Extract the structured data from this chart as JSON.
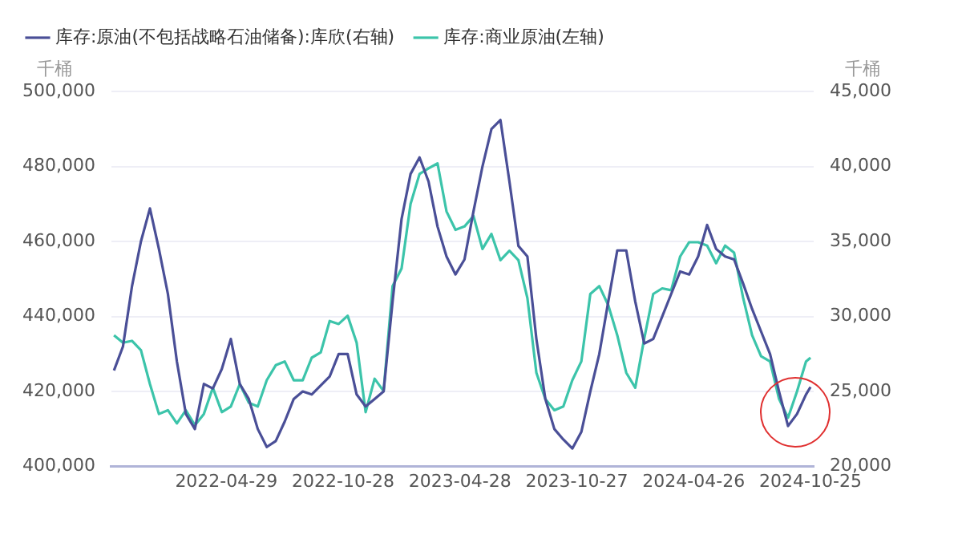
{
  "chart_data": {
    "type": "line",
    "ylabel": "千桶",
    "y2label": "千桶",
    "x": [
      "2021-11-05",
      "2021-11-19",
      "2021-12-03",
      "2021-12-17",
      "2021-12-31",
      "2022-01-14",
      "2022-01-28",
      "2022-02-11",
      "2022-02-25",
      "2022-03-11",
      "2022-03-25",
      "2022-04-08",
      "2022-04-22",
      "2022-05-06",
      "2022-05-20",
      "2022-06-03",
      "2022-06-17",
      "2022-07-01",
      "2022-07-15",
      "2022-07-29",
      "2022-08-12",
      "2022-08-26",
      "2022-09-09",
      "2022-09-23",
      "2022-10-07",
      "2022-10-21",
      "2022-11-04",
      "2022-11-18",
      "2022-12-02",
      "2022-12-16",
      "2022-12-30",
      "2023-01-13",
      "2023-01-27",
      "2023-02-10",
      "2023-02-24",
      "2023-03-10",
      "2023-03-24",
      "2023-04-07",
      "2023-04-21",
      "2023-05-05",
      "2023-05-19",
      "2023-06-02",
      "2023-06-16",
      "2023-06-30",
      "2023-07-14",
      "2023-07-28",
      "2023-08-11",
      "2023-08-25",
      "2023-09-08",
      "2023-09-22",
      "2023-10-06",
      "2023-10-20",
      "2023-11-03",
      "2023-11-17",
      "2023-12-01",
      "2023-12-15",
      "2023-12-29",
      "2024-01-12",
      "2024-01-26",
      "2024-02-09",
      "2024-02-23",
      "2024-03-08",
      "2024-03-22",
      "2024-04-05",
      "2024-04-19",
      "2024-05-03",
      "2024-05-17",
      "2024-05-31",
      "2024-06-14",
      "2024-06-28",
      "2024-07-12",
      "2024-07-26",
      "2024-08-09",
      "2024-08-23",
      "2024-09-06",
      "2024-09-20",
      "2024-10-04",
      "2024-10-18",
      "2024-10-25"
    ],
    "series": [
      {
        "name": "库存:原油(不包括战略石油储备):库欣(右轴)",
        "color": "#4a4f97",
        "axis": "y2",
        "values": [
          26400,
          28000,
          32000,
          35000,
          37200,
          34500,
          31500,
          27000,
          23500,
          22500,
          25500,
          25200,
          26500,
          28500,
          25500,
          24500,
          22500,
          21300,
          21700,
          23000,
          24500,
          25000,
          24800,
          25400,
          26000,
          27500,
          27500,
          24800,
          24000,
          24500,
          25000,
          31000,
          36500,
          39500,
          40600,
          39000,
          36000,
          34000,
          32800,
          33800,
          37000,
          40000,
          42500,
          43100,
          39000,
          34700,
          34000,
          28500,
          24500,
          22500,
          21800,
          21200,
          22300,
          25000,
          27500,
          31000,
          34400,
          34400,
          31000,
          28200,
          28500,
          30000,
          31500,
          33000,
          32800,
          34000,
          36100,
          34500,
          34000,
          33800,
          32200,
          30500,
          29000,
          27500,
          25000,
          22700,
          23500,
          24800,
          25300
        ]
      },
      {
        "name": "库存:商业原油(左轴)",
        "color": "#3cc4aa",
        "values": [
          435000,
          433000,
          433500,
          431000,
          422000,
          414000,
          415000,
          411500,
          415000,
          411000,
          414000,
          421000,
          414500,
          416000,
          422000,
          417000,
          416000,
          423000,
          427000,
          428000,
          423000,
          423000,
          429000,
          430400,
          438800,
          438000,
          440200,
          433000,
          414500,
          423400,
          420100,
          448100,
          452800,
          470000,
          478000,
          479500,
          480800,
          468000,
          463100,
          464000,
          466800,
          458000,
          462000,
          455000,
          457500,
          455000,
          444900,
          425000,
          418000,
          415000,
          416000,
          423000,
          428000,
          446000,
          448100,
          443000,
          435000,
          425000,
          421000,
          434100,
          446000,
          447500,
          447000,
          456000,
          459800,
          459800,
          458900,
          454200,
          458900,
          457000,
          445000,
          435000,
          429400,
          428000,
          418000,
          413000,
          420000,
          428000,
          429000
        ]
      }
    ],
    "xlim": [
      "2021-11-01",
      "2024-10-30"
    ],
    "xticks": [
      "2022-04-29",
      "2022-10-28",
      "2023-04-28",
      "2023-10-27",
      "2024-04-26",
      "2024-10-25"
    ],
    "ylim": [
      400000,
      500000
    ],
    "yticks": [
      {
        "value": 400000,
        "label": "400,000"
      },
      {
        "value": 420000,
        "label": "420,000"
      },
      {
        "value": 440000,
        "label": "440,000"
      },
      {
        "value": 460000,
        "label": "460,000"
      },
      {
        "value": 480000,
        "label": "480,000"
      },
      {
        "value": 500000,
        "label": "500,000"
      }
    ],
    "y2lim": [
      20000,
      45000
    ],
    "y2ticks": [
      {
        "value": 20000,
        "label": "20,000"
      },
      {
        "value": 25000,
        "label": "25,000"
      },
      {
        "value": 30000,
        "label": "30,000"
      },
      {
        "value": 35000,
        "label": "35,000"
      },
      {
        "value": 40000,
        "label": "40,000"
      },
      {
        "value": 45000,
        "label": "45,000"
      }
    ],
    "grid": "y",
    "legend": "top left",
    "marker": "none",
    "line_style": "solid"
  }
}
